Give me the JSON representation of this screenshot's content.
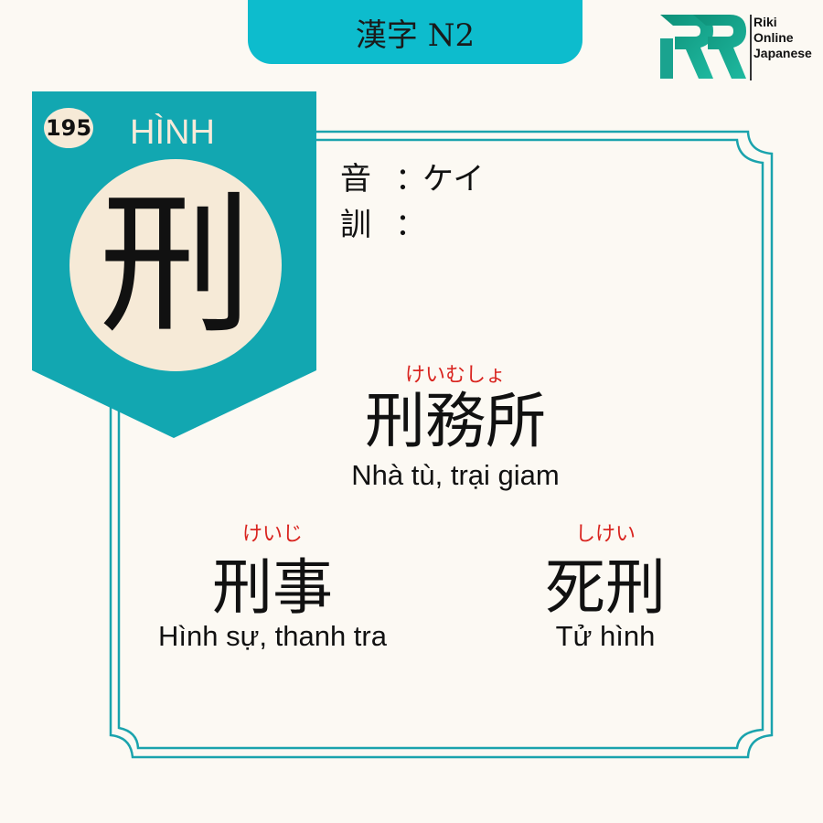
{
  "header": {
    "title": "漢字 N2"
  },
  "logo": {
    "lines": [
      "Riki",
      "Online",
      "Japanese"
    ],
    "color": "#1aa38f"
  },
  "kanji": {
    "number": "195",
    "han_viet": "HÌNH",
    "character": "刑",
    "on_label": "音",
    "on_reading": "ケイ",
    "kun_label": "訓",
    "kun_reading": "",
    "separator": "："
  },
  "vocabulary": [
    {
      "furigana": "けいむしょ",
      "word": "刑務所",
      "meaning": "Nhà tù, trại giam"
    },
    {
      "furigana": "けいじ",
      "word": "刑事",
      "meaning": "Hình sự, thanh tra"
    },
    {
      "furigana": "しけい",
      "word": "死刑",
      "meaning": "Tử hình"
    }
  ],
  "colors": {
    "teal": "#12a7b1",
    "accent_red": "#d9241f",
    "background": "#fcf9f3",
    "cream": "#f6ead7"
  }
}
